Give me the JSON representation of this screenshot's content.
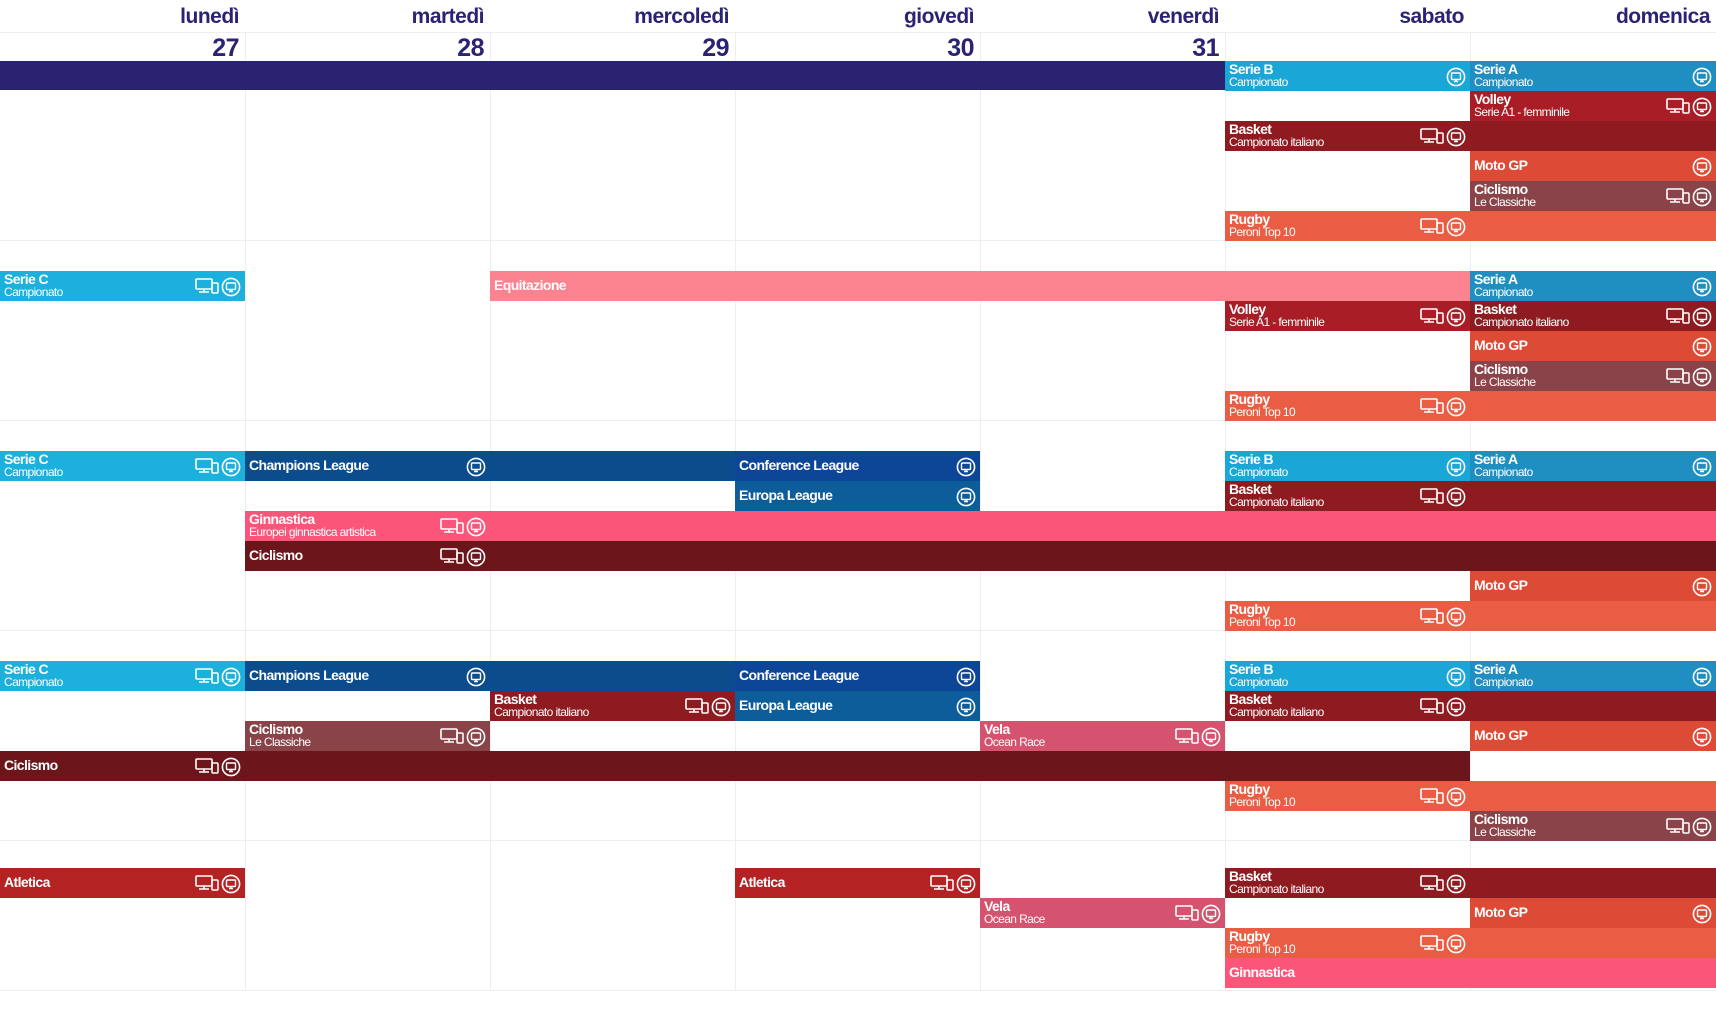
{
  "days": [
    {
      "name": "lunedì",
      "num": "27"
    },
    {
      "name": "martedì",
      "num": "28"
    },
    {
      "name": "mercoledì",
      "num": "29"
    },
    {
      "name": "giovedì",
      "num": "30"
    },
    {
      "name": "venerdì",
      "num": "31"
    },
    {
      "name": "sabato",
      "num": ""
    },
    {
      "name": "domenica",
      "num": ""
    }
  ],
  "colors": {
    "header": "#2a2372",
    "serie_b": "#1aa6d6",
    "serie_a": "#1f8fc2",
    "serie_c": "#1bb1dc",
    "volley": "#a91d26",
    "basket": "#8d1b20",
    "moto": "#dd4a36",
    "ciclismo_classiche": "#8a4449",
    "ciclismo": "#6c151a",
    "rugby": "#e95d44",
    "equitazione": "#fb8390",
    "champions": "#0a4c8c",
    "conference": "#0d4597",
    "europa": "#0d5d9a",
    "ginnastica": "#fb567a",
    "vela": "#d4536f",
    "atletica": "#b52223"
  },
  "events": [
    {
      "title": "Serie B",
      "subtitle": "Campionato",
      "icons": [
        "tv-icon"
      ]
    },
    {
      "title": "Serie A",
      "subtitle": "Campionato",
      "icons": [
        "tv-icon"
      ]
    },
    {
      "title": "Volley",
      "subtitle": "Serie A1 - femminile",
      "icons": [
        "device-icon",
        "tv-icon"
      ]
    },
    {
      "title": "Basket",
      "subtitle": "Campionato italiano",
      "icons": [
        "device-icon",
        "tv-icon"
      ]
    },
    {
      "title": "Moto GP",
      "subtitle": "",
      "icons": [
        "tv-icon"
      ]
    },
    {
      "title": "Ciclismo",
      "subtitle": "Le Classiche",
      "icons": [
        "device-icon",
        "tv-icon"
      ]
    },
    {
      "title": "Rugby",
      "subtitle": "Peroni Top 10",
      "icons": [
        "device-icon",
        "tv-icon"
      ]
    },
    {
      "title": "Serie C",
      "subtitle": "Campionato",
      "icons": [
        "device-icon",
        "tv-icon"
      ]
    },
    {
      "title": "Equitazione",
      "subtitle": "",
      "icons": []
    },
    {
      "title": "Serie A",
      "subtitle": "Campionato",
      "icons": [
        "tv-icon"
      ]
    },
    {
      "title": "Volley",
      "subtitle": "Serie A1 - femminile",
      "icons": [
        "device-icon",
        "tv-icon"
      ]
    },
    {
      "title": "Basket",
      "subtitle": "Campionato italiano",
      "icons": [
        "device-icon",
        "tv-icon"
      ]
    },
    {
      "title": "Moto GP",
      "subtitle": "",
      "icons": [
        "tv-icon"
      ]
    },
    {
      "title": "Ciclismo",
      "subtitle": "Le Classiche",
      "icons": [
        "device-icon",
        "tv-icon"
      ]
    },
    {
      "title": "Rugby",
      "subtitle": "Peroni Top 10",
      "icons": [
        "device-icon",
        "tv-icon"
      ]
    },
    {
      "title": "Serie C",
      "subtitle": "Campionato",
      "icons": [
        "device-icon",
        "tv-icon"
      ]
    },
    {
      "title": "Champions League",
      "subtitle": "",
      "icons": [
        "tv-icon"
      ]
    },
    {
      "title": "Conference League",
      "subtitle": "",
      "icons": [
        "tv-icon"
      ]
    },
    {
      "title": "Serie B",
      "subtitle": "Campionato",
      "icons": [
        "tv-icon"
      ]
    },
    {
      "title": "Serie A",
      "subtitle": "Campionato",
      "icons": [
        "tv-icon"
      ]
    },
    {
      "title": "Europa League",
      "subtitle": "",
      "icons": [
        "tv-icon"
      ]
    },
    {
      "title": "Basket",
      "subtitle": "Campionato italiano",
      "icons": [
        "device-icon",
        "tv-icon"
      ]
    },
    {
      "title": "Ginnastica",
      "subtitle": "Europei ginnastica artistica",
      "icons": [
        "device-icon",
        "tv-icon"
      ]
    },
    {
      "title": "Ciclismo",
      "subtitle": "",
      "icons": [
        "device-icon",
        "tv-icon"
      ]
    },
    {
      "title": "Moto GP",
      "subtitle": "",
      "icons": [
        "tv-icon"
      ]
    },
    {
      "title": "Rugby",
      "subtitle": "Peroni Top 10",
      "icons": [
        "device-icon",
        "tv-icon"
      ]
    },
    {
      "title": "Serie C",
      "subtitle": "Campionato",
      "icons": [
        "device-icon",
        "tv-icon"
      ]
    },
    {
      "title": "Champions League",
      "subtitle": "",
      "icons": [
        "tv-icon"
      ]
    },
    {
      "title": "Conference League",
      "subtitle": "",
      "icons": [
        "tv-icon"
      ]
    },
    {
      "title": "Serie B",
      "subtitle": "Campionato",
      "icons": [
        "tv-icon"
      ]
    },
    {
      "title": "Serie A",
      "subtitle": "Campionato",
      "icons": [
        "tv-icon"
      ]
    },
    {
      "title": "Basket",
      "subtitle": "Campionato italiano",
      "icons": [
        "device-icon",
        "tv-icon"
      ]
    },
    {
      "title": "Europa League",
      "subtitle": "",
      "icons": [
        "tv-icon"
      ]
    },
    {
      "title": "Basket",
      "subtitle": "Campionato italiano",
      "icons": [
        "device-icon",
        "tv-icon"
      ]
    },
    {
      "title": "Ciclismo",
      "subtitle": "Le Classiche",
      "icons": [
        "device-icon",
        "tv-icon"
      ]
    },
    {
      "title": "Vela",
      "subtitle": "Ocean Race",
      "icons": [
        "device-icon",
        "tv-icon"
      ]
    },
    {
      "title": "Moto GP",
      "subtitle": "",
      "icons": [
        "tv-icon"
      ]
    },
    {
      "title": "Ciclismo",
      "subtitle": "",
      "icons": [
        "device-icon",
        "tv-icon"
      ]
    },
    {
      "title": "Rugby",
      "subtitle": "Peroni Top 10",
      "icons": [
        "device-icon",
        "tv-icon"
      ]
    },
    {
      "title": "Ciclismo",
      "subtitle": "Le Classiche",
      "icons": [
        "device-icon",
        "tv-icon"
      ]
    },
    {
      "title": "Atletica",
      "subtitle": "",
      "icons": [
        "device-icon",
        "tv-icon"
      ]
    },
    {
      "title": "Atletica",
      "subtitle": "",
      "icons": [
        "device-icon",
        "tv-icon"
      ]
    },
    {
      "title": "Basket",
      "subtitle": "Campionato italiano",
      "icons": [
        "device-icon",
        "tv-icon"
      ]
    },
    {
      "title": "Vela",
      "subtitle": "Ocean Race",
      "icons": [
        "device-icon",
        "tv-icon"
      ]
    },
    {
      "title": "Moto GP",
      "subtitle": "",
      "icons": [
        "tv-icon"
      ]
    },
    {
      "title": "Rugby",
      "subtitle": "Peroni Top 10",
      "icons": [
        "device-icon",
        "tv-icon"
      ]
    },
    {
      "title": "Ginnastica",
      "subtitle": "",
      "icons": []
    }
  ]
}
